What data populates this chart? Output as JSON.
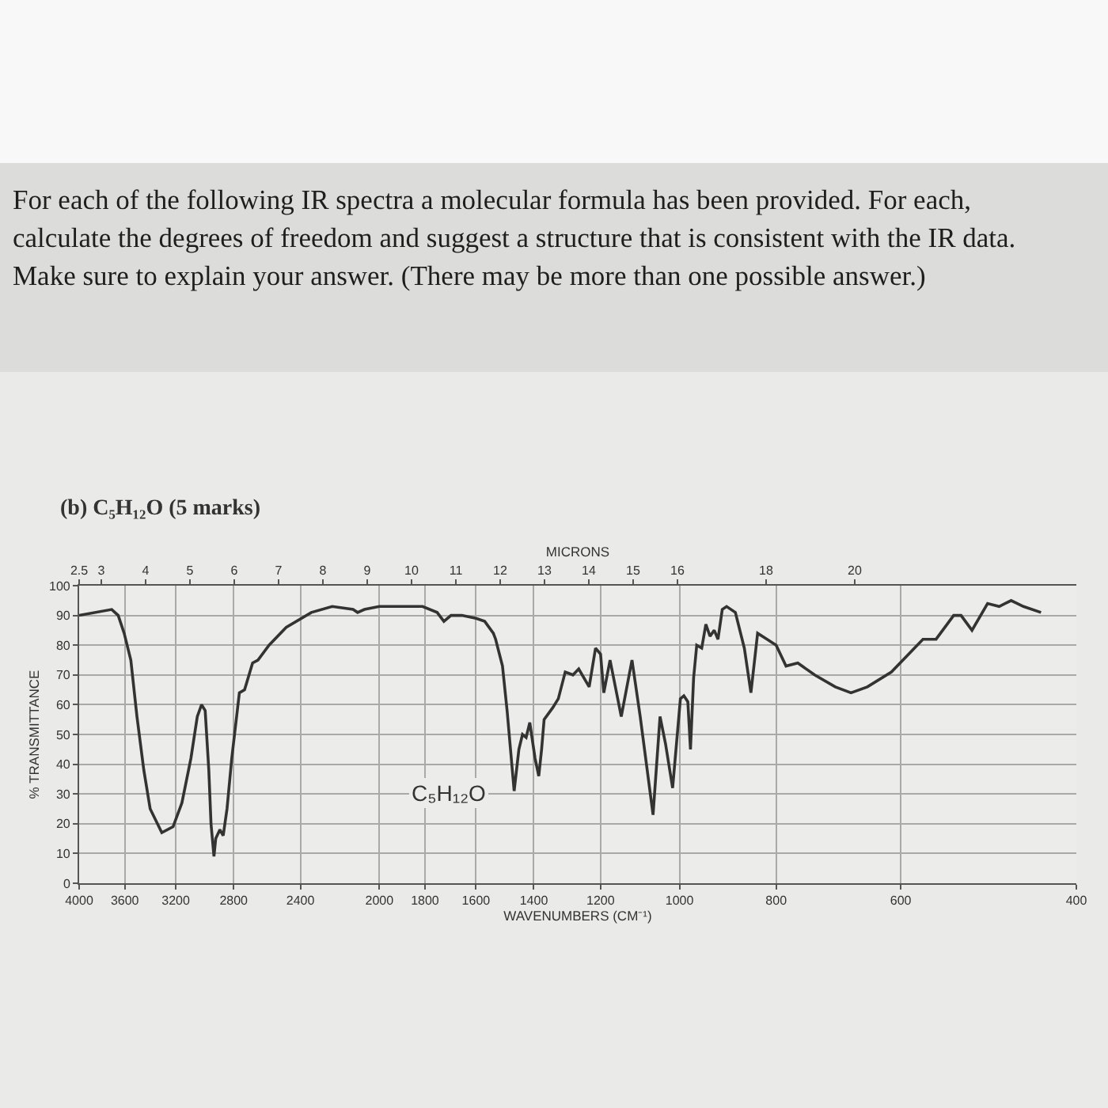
{
  "chart_data": {
    "type": "line",
    "title": "For each of the following IR spectra a molecular formula has been provided. For each, calculate the degrees of freedom and suggest a structure that is consistent with the IR data. Make sure to explain your answer. (There may be more than one possible answer.)",
    "subtitle": "(b) C₅H₁₂O (5 marks)",
    "xlabel": "WAVENUMBERS (CM⁻¹)",
    "x2label": "MICRONS",
    "ylabel": "% TRANSMITTANCE",
    "annotations": [
      "C₅H₁₂O"
    ],
    "x": [
      4000,
      3710,
      3655,
      3605,
      3550,
      3500,
      3445,
      3395,
      3305,
      3220,
      3155,
      3090,
      3045,
      3015,
      2990,
      2965,
      2950,
      2930,
      2918,
      2890,
      2868,
      2843,
      2812,
      2763,
      2730,
      2680,
      2647,
      2580,
      2480,
      2340,
      2230,
      2125,
      2103,
      2070,
      2000,
      1810,
      1750,
      1723,
      1695,
      1653,
      1600,
      1568,
      1537,
      1529,
      1505,
      1489,
      1465,
      1449,
      1437,
      1425,
      1413,
      1396,
      1384,
      1375,
      1367,
      1340,
      1323,
      1302,
      1279,
      1262,
      1232,
      1214,
      1200,
      1191,
      1174,
      1144,
      1116,
      1095,
      1063,
      1046,
      1033,
      1016,
      998,
      990,
      981,
      975,
      968,
      961,
      950,
      941,
      932,
      923,
      915,
      906,
      897,
      879,
      861,
      848,
      835,
      817,
      800,
      782,
      761,
      732,
      698,
      673,
      648,
      613,
      570,
      553,
      531,
      522,
      509,
      491,
      478,
      465,
      452,
      434
    ],
    "values": [
      90,
      92,
      90,
      84,
      75,
      56,
      38,
      25,
      17,
      19,
      27,
      42,
      56,
      60,
      58,
      38,
      20,
      9,
      15,
      18,
      16,
      25,
      42,
      64,
      65,
      74,
      75,
      80,
      86,
      91,
      93,
      92,
      91,
      92,
      93,
      93,
      91,
      88,
      90,
      90,
      89,
      88,
      84,
      82,
      73,
      58,
      31,
      45,
      50,
      49,
      54,
      42,
      36,
      45,
      55,
      59,
      62,
      71,
      70,
      72,
      66,
      79,
      77,
      64,
      75,
      56,
      75,
      56,
      23,
      56,
      47,
      32,
      62,
      63,
      61,
      45,
      69,
      80,
      79,
      87,
      83,
      85,
      82,
      92,
      93,
      91,
      79,
      64,
      84,
      82,
      80,
      73,
      74,
      70,
      66,
      64,
      66,
      71,
      82,
      82,
      90,
      90,
      85,
      94,
      93,
      95,
      93,
      91
    ],
    "color": "#333333",
    "log": "x",
    "xlim": [
      4000,
      400
    ],
    "xticks": [
      4000,
      3600,
      3200,
      2800,
      2400,
      2000,
      1800,
      1600,
      1400,
      1200,
      1000,
      800,
      600,
      400
    ],
    "x2lim": [
      2.5,
      25
    ],
    "x2ticks": [
      2.5,
      3,
      4,
      5,
      6,
      7,
      8,
      9,
      10,
      11,
      12,
      13,
      14,
      15,
      16,
      18,
      20
    ],
    "ylim": [
      0,
      100
    ],
    "yticks": [
      0,
      10,
      20,
      30,
      40,
      50,
      60,
      70,
      80,
      90,
      100
    ],
    "grid": true
  }
}
